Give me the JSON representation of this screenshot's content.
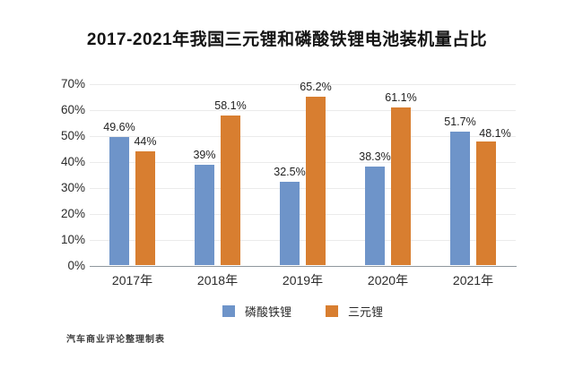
{
  "title": "2017-2021年我国三元锂和磷酸铁锂电池装机量占比",
  "watermark": "汽车商业评论整理制表",
  "colors": {
    "lfp_blue": "#6E94C9",
    "ternary_orange": "#D87E30",
    "axis_gray": "#8f979e",
    "grid_gray": "#ebebeb"
  },
  "chart_data": {
    "type": "bar",
    "categories": [
      "2017年",
      "2018年",
      "2019年",
      "2020年",
      "2021年"
    ],
    "series": [
      {
        "key": "lfp",
        "name": "磷酸铁锂",
        "color": "#6E94C9",
        "values": [
          49.6,
          39,
          32.5,
          38.3,
          51.7
        ],
        "labels": [
          "49.6%",
          "39%",
          "32.5%",
          "38.3%",
          "51.7%"
        ]
      },
      {
        "key": "ternary",
        "name": "三元锂",
        "color": "#D87E30",
        "values": [
          44,
          58.1,
          65.2,
          61.1,
          48.1
        ],
        "labels": [
          "44%",
          "58.1%",
          "65.2%",
          "61.1%",
          "48.1%"
        ]
      }
    ],
    "title": "2017-2021年我国三元锂和磷酸铁锂电池装机量占比",
    "xlabel": "",
    "ylabel": "",
    "y_ticks": [
      "0%",
      "10%",
      "20%",
      "30%",
      "40%",
      "50%",
      "60%",
      "70%"
    ],
    "ylim": [
      0,
      70
    ],
    "grid": true,
    "legend_position": "bottom"
  }
}
